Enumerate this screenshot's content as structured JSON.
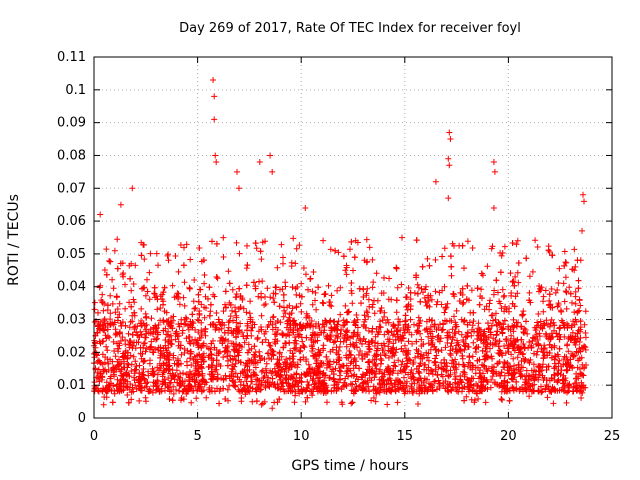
{
  "chart_data": {
    "type": "scatter",
    "title": "Day 269 of 2017, Rate Of TEC Index for receiver foyl",
    "xlabel": "GPS time / hours",
    "ylabel": "ROTI / TECUs",
    "xlim": [
      0,
      25
    ],
    "ylim": [
      0,
      0.11
    ],
    "xticks": [
      0,
      5,
      10,
      15,
      20,
      25
    ],
    "xtick_labels": [
      "0",
      "5",
      "10",
      "15",
      "20",
      "25"
    ],
    "yticks": [
      0,
      0.01,
      0.02,
      0.03,
      0.04,
      0.05,
      0.06,
      0.07,
      0.08,
      0.09,
      0.1,
      0.11
    ],
    "ytick_labels": [
      "0",
      "0.01",
      "0.02",
      "0.03",
      "0.04",
      "0.05",
      "0.06",
      "0.07",
      "0.08",
      "0.09",
      "0.1",
      "0.11"
    ],
    "grid": true,
    "marker": "+",
    "color": "#ff0000",
    "data_range_hours": [
      0,
      23.75
    ],
    "typical_band": [
      0.008,
      0.03
    ],
    "series": [
      {
        "name": "ROTI",
        "notable_points": [
          {
            "x": 5.75,
            "y": 0.103
          },
          {
            "x": 5.8,
            "y": 0.098
          },
          {
            "x": 5.8,
            "y": 0.091
          },
          {
            "x": 5.85,
            "y": 0.08
          },
          {
            "x": 5.9,
            "y": 0.078
          },
          {
            "x": 1.85,
            "y": 0.07
          },
          {
            "x": 1.3,
            "y": 0.065
          },
          {
            "x": 0.3,
            "y": 0.062
          },
          {
            "x": 6.9,
            "y": 0.075
          },
          {
            "x": 7.0,
            "y": 0.07
          },
          {
            "x": 8.0,
            "y": 0.078
          },
          {
            "x": 8.5,
            "y": 0.08
          },
          {
            "x": 8.6,
            "y": 0.075
          },
          {
            "x": 10.2,
            "y": 0.064
          },
          {
            "x": 17.15,
            "y": 0.087
          },
          {
            "x": 17.2,
            "y": 0.085
          },
          {
            "x": 17.1,
            "y": 0.079
          },
          {
            "x": 17.15,
            "y": 0.077
          },
          {
            "x": 17.1,
            "y": 0.067
          },
          {
            "x": 16.5,
            "y": 0.072
          },
          {
            "x": 19.3,
            "y": 0.078
          },
          {
            "x": 19.35,
            "y": 0.075
          },
          {
            "x": 19.3,
            "y": 0.064
          },
          {
            "x": 23.6,
            "y": 0.068
          },
          {
            "x": 23.65,
            "y": 0.066
          },
          {
            "x": 23.55,
            "y": 0.057
          },
          {
            "x": 8.6,
            "y": 0.003
          }
        ]
      }
    ]
  }
}
